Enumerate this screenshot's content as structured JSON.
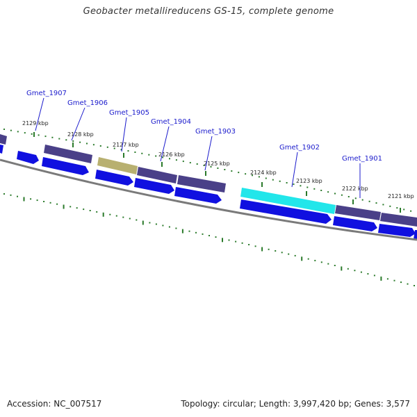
{
  "title": "Geobacter metallireducens GS-15, complete genome",
  "footer": {
    "accession": "Accession: NC_007517",
    "summary": "Topology: circular; Length: 3,997,420 bp; Genes: 3,577"
  },
  "colors": {
    "cds_forward": "#1010e0",
    "gene_default": "#4a4088",
    "gene_highlight": "#22e6ea",
    "gene_selected": "#b8b070",
    "backbone": "#7a7a7a",
    "tick": "#2a7a2a",
    "label": "#1a1acc"
  },
  "ticks": [
    {
      "label": "2129 kbp"
    },
    {
      "label": "2128 kbp"
    },
    {
      "label": "2127 kbp"
    },
    {
      "label": "2126 kbp"
    },
    {
      "label": "2125 kbp"
    },
    {
      "label": "2124 kbp"
    },
    {
      "label": "2123 kbp"
    },
    {
      "label": "2122 kbp"
    },
    {
      "label": "2121 kbp"
    }
  ],
  "genes": [
    {
      "name": "Gmet_1907"
    },
    {
      "name": "Gmet_1906"
    },
    {
      "name": "Gmet_1905"
    },
    {
      "name": "Gmet_1904"
    },
    {
      "name": "Gmet_1903"
    },
    {
      "name": "Gmet_1902"
    },
    {
      "name": "Gmet_1901"
    }
  ]
}
